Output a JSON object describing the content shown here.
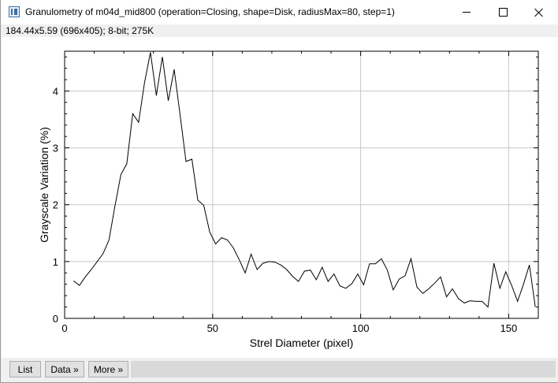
{
  "window": {
    "title": "Granulometry of m04d_mid800 (operation=Closing, shape=Disk, radiusMax=80, step=1)",
    "info": "184.44x5.59   (696x405); 8-bit; 275K"
  },
  "buttons": {
    "list": "List",
    "data": "Data »",
    "more": "More »"
  },
  "chart_data": {
    "type": "line",
    "title": "",
    "xlabel": "Strel Diameter (pixel)",
    "ylabel": "Grayscale Variation (%)",
    "xlim": [
      0,
      160
    ],
    "ylim": [
      0,
      4.7
    ],
    "xticks": [
      0,
      50,
      100,
      150
    ],
    "yticks": [
      0,
      1,
      2,
      3,
      4
    ],
    "grid": true,
    "line_color": "#000000",
    "series": [
      {
        "x": [
          3,
          5,
          7,
          9,
          11,
          13,
          15,
          17,
          19,
          21,
          23,
          25,
          27,
          29,
          31,
          33,
          35,
          37,
          39,
          41,
          43,
          45,
          47,
          49,
          51,
          53,
          55,
          57,
          59,
          61,
          63,
          65,
          67,
          69,
          71,
          73,
          75,
          77,
          79,
          81,
          83,
          85,
          87,
          89,
          91,
          93,
          95,
          97,
          99,
          101,
          103,
          105,
          107,
          109,
          111,
          113,
          115,
          117,
          119,
          121,
          123,
          125,
          127,
          129,
          131,
          133,
          135,
          137,
          139,
          141,
          143,
          145,
          147,
          149,
          151,
          153,
          155,
          157,
          159
        ],
        "y": [
          0.66,
          0.58,
          0.73,
          0.86,
          1.0,
          1.14,
          1.38,
          1.98,
          2.53,
          2.72,
          3.6,
          3.45,
          4.15,
          4.68,
          3.92,
          4.6,
          3.83,
          4.38,
          3.58,
          2.76,
          2.8,
          2.08,
          1.99,
          1.52,
          1.31,
          1.42,
          1.38,
          1.24,
          1.03,
          0.8,
          1.13,
          0.86,
          0.97,
          1.0,
          0.99,
          0.94,
          0.86,
          0.74,
          0.65,
          0.83,
          0.85,
          0.68,
          0.9,
          0.65,
          0.78,
          0.57,
          0.53,
          0.61,
          0.78,
          0.59,
          0.96,
          0.96,
          1.05,
          0.85,
          0.5,
          0.69,
          0.75,
          1.05,
          0.55,
          0.44,
          0.52,
          0.62,
          0.73,
          0.38,
          0.52,
          0.35,
          0.27,
          0.31,
          0.3,
          0.3,
          0.2,
          0.97,
          0.53,
          0.82,
          0.58,
          0.3,
          0.6,
          0.94,
          0.2
        ]
      }
    ]
  }
}
